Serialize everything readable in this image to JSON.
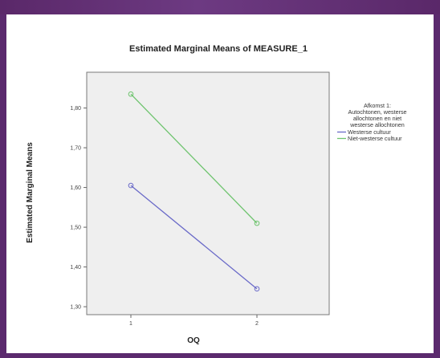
{
  "chart_data": {
    "type": "line",
    "title": "Estimated Marginal Means of MEASURE_1",
    "xlabel": "OQ",
    "ylabel": "Estimated Marginal Means",
    "categories": [
      "1",
      "2"
    ],
    "ylim": [
      1.28,
      1.89
    ],
    "yticks": [
      "1,30",
      "1,40",
      "1,50",
      "1,60",
      "1,70",
      "1,80"
    ],
    "ytick_values": [
      1.3,
      1.4,
      1.5,
      1.6,
      1.7,
      1.8
    ],
    "legend": {
      "title_lines": [
        "Afkomst 1:",
        "Autochtonen, westerse",
        "allochtonen en niet",
        "westerse allochtonen"
      ],
      "placement": "right"
    },
    "series": [
      {
        "name": "Westerse cultuur",
        "color": "#6a6ac8",
        "values": [
          1.605,
          1.345
        ]
      },
      {
        "name": "Niet-westerse cultuur",
        "color": "#6fc46f",
        "values": [
          1.835,
          1.51
        ]
      }
    ],
    "background": "#efefef"
  }
}
